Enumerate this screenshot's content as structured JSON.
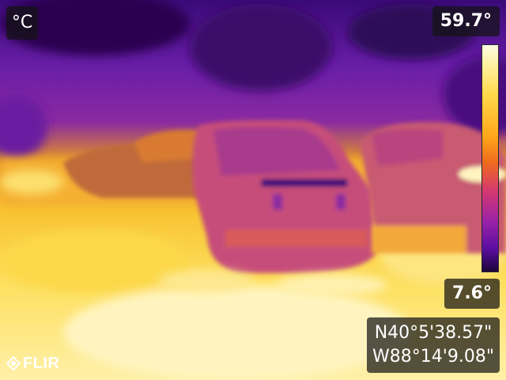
{
  "overlay": {
    "unit": "°C",
    "max_temp": "59.7°",
    "min_temp": "7.6°",
    "gps_lat": "N40°5'38.57\"",
    "gps_lon": "W88°14'9.08\""
  },
  "brand": {
    "logo_text": "FLIR"
  },
  "colors": {
    "overlay_bg": "#141414",
    "text": "#ffffff",
    "palette": "iron"
  }
}
